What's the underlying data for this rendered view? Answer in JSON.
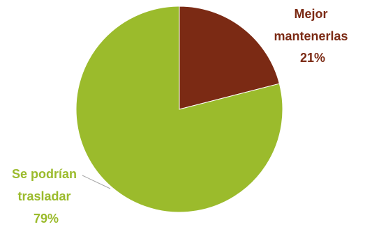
{
  "chart_data": {
    "type": "pie",
    "title": "",
    "slices": [
      {
        "label_lines": [
          "Mejor",
          "mantenerlas"
        ],
        "value": 21,
        "value_label": "21%",
        "color": "#7B2A14",
        "label_color": "#7B2A14"
      },
      {
        "label_lines": [
          "Se podrían",
          "trasladar"
        ],
        "value": 79,
        "value_label": "79%",
        "color": "#9BBB2C",
        "label_color": "#9BBB2C"
      }
    ],
    "start_angle_deg": 0,
    "direction": "clockwise",
    "legend": "none",
    "leader_line_color": "#A6A6A6"
  }
}
